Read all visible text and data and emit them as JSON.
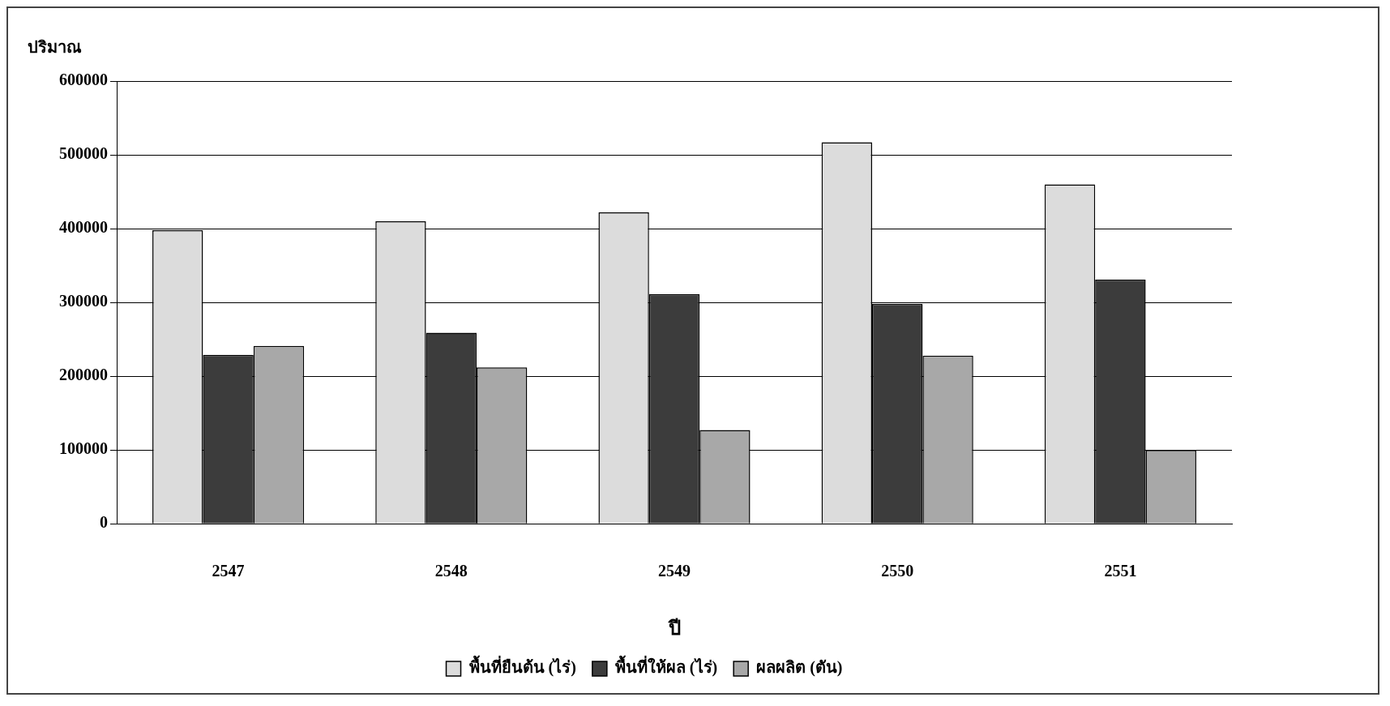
{
  "chart_data": {
    "type": "bar",
    "ylabel": "ปริมาณ",
    "xlabel": "ปี",
    "categories": [
      "2547",
      "2548",
      "2549",
      "2550",
      "2551"
    ],
    "series": [
      {
        "name": "พื้นที่ยืนต้น (ไร่)",
        "color": "#dcdcdc",
        "values": [
          398000,
          410000,
          422000,
          517000,
          460000
        ]
      },
      {
        "name": "พื้นที่ให้ผล (ไร่)",
        "color": "#3c3c3c",
        "values": [
          229000,
          259000,
          311000,
          298000,
          331000
        ]
      },
      {
        "name": "ผลผลิต (ตัน)",
        "color": "#a8a8a8",
        "values": [
          241000,
          212000,
          127000,
          228000,
          100000
        ]
      }
    ],
    "ylim": [
      0,
      600000
    ],
    "yticks": [
      0,
      100000,
      200000,
      300000,
      400000,
      500000,
      600000
    ],
    "grid": "y",
    "legend": "bottom"
  }
}
